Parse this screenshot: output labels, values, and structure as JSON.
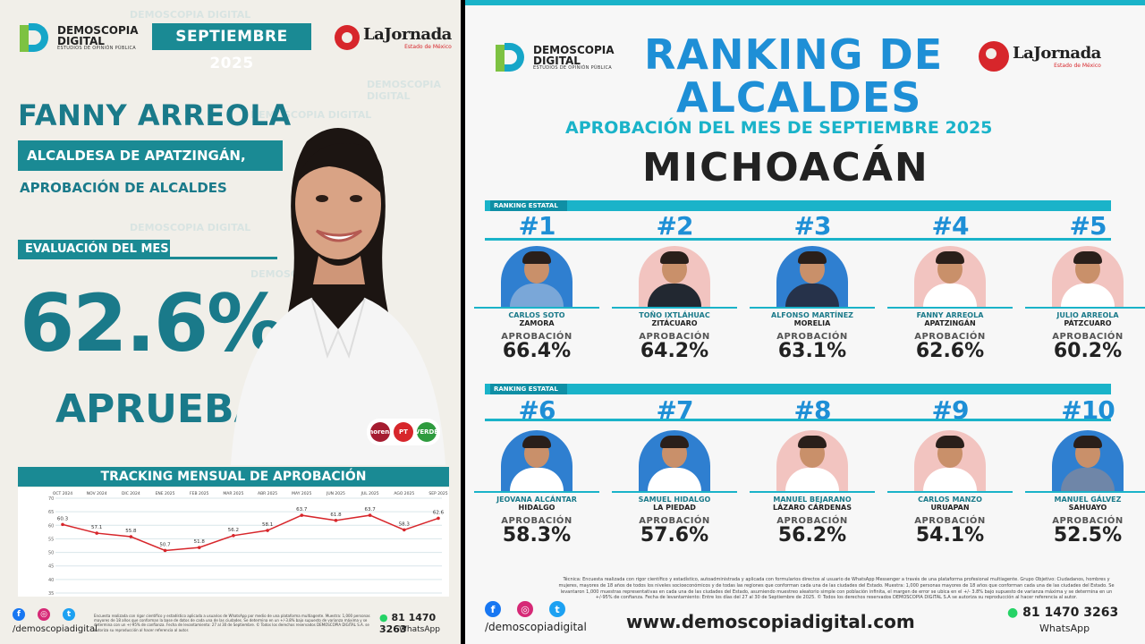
{
  "left": {
    "brand": {
      "line1": "DEMOSCOPIA",
      "line2": "DIGITAL",
      "tagline": "ESTUDIOS DE OPINIÓN PÚBLICA"
    },
    "month": "SEPTIEMBRE 2025",
    "jornada": {
      "name": "LaJornada",
      "sub": "Estado de México"
    },
    "watermark": "DEMOSCOPIA DIGITAL",
    "person_name": "FANNY ARREOLA",
    "person_title": "ALCALDESA DE APATZINGÁN, MICH.",
    "subtitle": "APROBACIÓN DE ALCALDES",
    "eval_label": "EVALUACIÓN DEL MES",
    "big_value": "62.6%",
    "aprueba": "APRUEBA",
    "parties": [
      {
        "icon": "morena-logo",
        "label": "morena",
        "color": "#a51c30"
      },
      {
        "icon": "pt-logo",
        "label": "PT",
        "color": "#d7262b"
      },
      {
        "icon": "pvem-logo",
        "label": "VERDE",
        "color": "#2e9b3e"
      }
    ],
    "tracking_title": "TRACKING MENSUAL DE APROBACIÓN",
    "footer": {
      "handle": "/demoscopiadigital",
      "phone": "81 1470 3263",
      "whatsapp": "WhatsApp",
      "note": "Encuesta realizada con rigor científico y estadístico aplicada a usuarios de WhatsApp por medio de una plataforma multiagente. Muestra: 1,000 personas mayores de 18 años que conforman la base de datos de cada una de las ciudades. Se determina en un +/-3.8% bajo supuesto de varianza máxima y se determina con un +/-95% de confianza. Fecha de levantamiento: 27 al 30 de Septiembre. © Todos los derechos reservados DEMOSCOPIA DIGITAL S.A. se autoriza su reproducción al hacer referencia al autor."
    }
  },
  "chart_data": {
    "type": "line",
    "title": "TRACKING MENSUAL DE APROBACIÓN",
    "categories": [
      "OCT 2024",
      "NOV 2024",
      "DIC 2024",
      "ENE 2025",
      "FEB 2025",
      "MAR 2025",
      "ABR 2025",
      "MAY 2025",
      "JUN 2025",
      "JUL 2025",
      "AGO 2025",
      "SEP 2025"
    ],
    "values": [
      60.3,
      57.1,
      55.8,
      50.7,
      51.8,
      56.2,
      58.1,
      63.7,
      61.8,
      63.7,
      58.3,
      62.6
    ],
    "ylim": [
      35,
      70
    ],
    "yticks": [
      70,
      65,
      60,
      55,
      50,
      45,
      40,
      35
    ],
    "grid": true,
    "color": "#d7262b"
  },
  "right": {
    "title_line1": "RANKING DE",
    "title_line2": "ALCALDES",
    "subtitle": "APROBACIÓN DEL MES DE SEPTIEMBRE 2025",
    "state": "MICHOACÁN",
    "ranking_label": "RANKING ESTATAL",
    "approval_label": "APROBACIÓN",
    "mayors": [
      {
        "rank": "#1",
        "name": "CARLOS SOTO",
        "city": "ZAMORA",
        "value": "66.4%",
        "bg": "#2f7fd0",
        "body": "#7aa7d8"
      },
      {
        "rank": "#2",
        "name": "TOÑO IXTLÁHUAC",
        "city": "ZITÁCUARO",
        "value": "64.2%",
        "bg": "#f2c4c0",
        "body": "#222831"
      },
      {
        "rank": "#3",
        "name": "ALFONSO MARTÍNEZ",
        "city": "MORELIA",
        "value": "63.1%",
        "bg": "#2f7fd0",
        "body": "#26324a"
      },
      {
        "rank": "#4",
        "name": "FANNY ARREOLA",
        "city": "APATZINGÁN",
        "value": "62.6%",
        "bg": "#f2c4c0",
        "body": "#ffffff"
      },
      {
        "rank": "#5",
        "name": "JULIO ARREOLA",
        "city": "PÁTZCUARO",
        "value": "60.2%",
        "bg": "#f2c4c0",
        "body": "#ffffff"
      },
      {
        "rank": "#6",
        "name": "JEOVANA ALCÁNTAR",
        "city": "HIDALGO",
        "value": "58.3%",
        "bg": "#2f7fd0",
        "body": "#ffffff"
      },
      {
        "rank": "#7",
        "name": "SAMUEL HIDALGO",
        "city": "LA PIEDAD",
        "value": "57.6%",
        "bg": "#2f7fd0",
        "body": "#ffffff"
      },
      {
        "rank": "#8",
        "name": "MANUEL BEJARANO",
        "city": "LÁZARO CÁRDENAS",
        "value": "56.2%",
        "bg": "#f2c4c0",
        "body": "#ffffff"
      },
      {
        "rank": "#9",
        "name": "CARLOS MANZO",
        "city": "URUAPAN",
        "value": "54.1%",
        "bg": "#f2c4c0",
        "body": "#ffffff"
      },
      {
        "rank": "#10",
        "name": "MANUEL GÁLVEZ",
        "city": "SAHUAYO",
        "value": "52.5%",
        "bg": "#2f7fd0",
        "body": "#6f86a8"
      }
    ],
    "footnote": "Técnica: Encuesta realizada con rigor científico y estadístico, autoadministrada y aplicada con formularios directos al usuario de WhatsApp Messenger a través de una plataforma profesional multiagente. Grupo Objetivo: Ciudadanos, hombres y mujeres, mayores de 18 años de todos los niveles socioeconómicos y de todas las regiones que conforman cada una de las ciudades del Estado. Muestra: 1,000 personas mayores de 18 años que conforman cada una de las ciudades del Estado. Se levantaron 1,000 muestras representativas en cada una de las ciudades del Estado, asumiendo muestreo aleatorio simple con población infinita, el margen de error se ubica en el +/- 3.8% bajo supuesto de varianza máxima y se determina en un +/-95% de confianza. Fecha de levantamiento: Entre los días del 27 al 30 de Septiembre de 2025. © Todos los derechos reservados DEMOSCOPIA DIGITAL S.A se autoriza su reproducción al hacer referencia al autor.",
    "url": "www.demoscopiadigital.com",
    "handle": "/demoscopiadigital",
    "phone": "81 1470 3263",
    "whatsapp": "WhatsApp"
  },
  "colors": {
    "teal": "#1a8a94",
    "accent_blue": "#1e8fd6",
    "cyan": "#1ab3c9",
    "line_red": "#d7262b"
  }
}
